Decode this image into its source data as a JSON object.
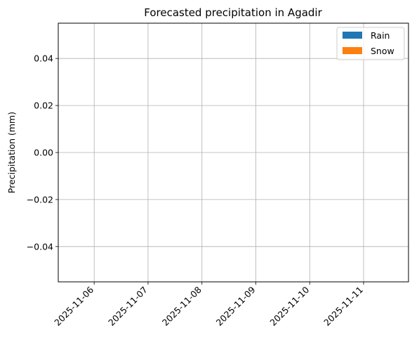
{
  "chart_data": {
    "type": "bar",
    "title": "Forecasted precipitation in Agadir",
    "xlabel": "",
    "ylabel": "Precipitation (mm)",
    "ylim": [
      -0.055,
      0.055
    ],
    "yticks": [
      -0.04,
      -0.02,
      0.0,
      0.02,
      0.04
    ],
    "ytick_labels": [
      "−0.04",
      "−0.02",
      "0.00",
      "0.02",
      "0.04"
    ],
    "xlim": [
      "2025-11-05 08:00",
      "2025-11-11 20:00"
    ],
    "x_tick_labels": [
      "2025-11-06",
      "2025-11-07",
      "2025-11-08",
      "2025-11-09",
      "2025-11-10",
      "2025-11-11"
    ],
    "x_tick_rotation": 45,
    "grid": true,
    "legend_position": "top-right",
    "series": [
      {
        "name": "Rain",
        "color": "#1f77b4",
        "values": []
      },
      {
        "name": "Snow",
        "color": "#ff7f0e",
        "values": []
      }
    ]
  }
}
